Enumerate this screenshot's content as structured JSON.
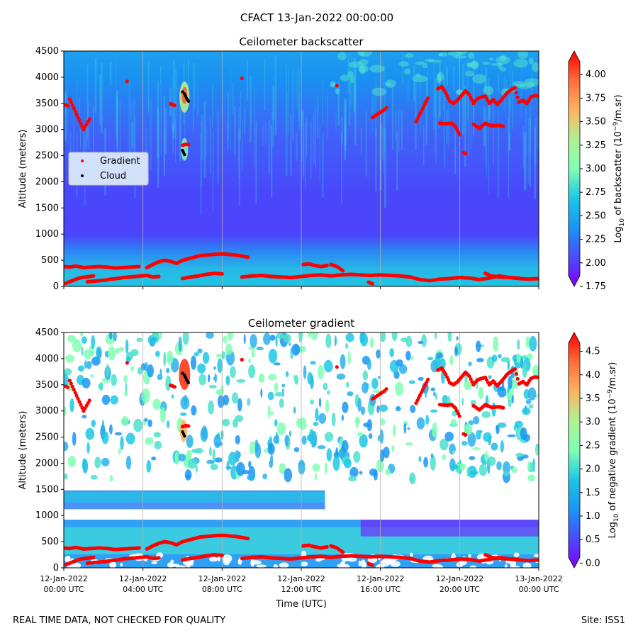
{
  "suptitle": "CFACT 13-Jan-2022 00:00:00",
  "footer": {
    "left": "REAL TIME DATA, NOT CHECKED FOR QUALITY",
    "right": "Site: ISS1"
  },
  "colors": {
    "gradient_marker": "#ff0000",
    "cloud_marker": "#000000",
    "legend_bg": "#dbe8fb",
    "grid": "#b0b0b0"
  },
  "chart_data": [
    {
      "type": "heatmap",
      "title": "Ceilometer backscatter",
      "ylabel": "Altitude (meters)",
      "xlabel": "",
      "x_tick_labels": [
        [
          "12-Jan-2022",
          "00:00 UTC"
        ],
        [
          "12-Jan-2022",
          "04:00 UTC"
        ],
        [
          "12-Jan-2022",
          "08:00 UTC"
        ],
        [
          "12-Jan-2022",
          "12:00 UTC"
        ],
        [
          "12-Jan-2022",
          "16:00 UTC"
        ],
        [
          "12-Jan-2022",
          "20:00 UTC"
        ],
        [
          "13-Jan-2022",
          "00:00 UTC"
        ]
      ],
      "xlim_hours": [
        0,
        24
      ],
      "ylim": [
        0,
        4500
      ],
      "yticks": [
        0,
        500,
        1000,
        1500,
        2000,
        2500,
        3000,
        3500,
        4000,
        4500
      ],
      "grid": "vertical",
      "colormap": "rainbow",
      "colorbar": {
        "label": "Log10 of backscatter (10^-9/m.sr)",
        "label_main": "Log",
        "label_sub": "10",
        "label_rest": " of backscatter (10",
        "label_sup": "−9",
        "label_end": "/m.sr)",
        "range": [
          1.75,
          4.25
        ],
        "ticks": [
          "1.75",
          "2.00",
          "2.25",
          "2.50",
          "2.75",
          "3.00",
          "3.25",
          "3.50",
          "3.75",
          "4.00"
        ]
      },
      "legend": {
        "placement": "center-left",
        "entries": [
          {
            "name": "Gradient",
            "color": "#ff0000"
          },
          {
            "name": "Cloud",
            "color": "#000000"
          }
        ]
      },
      "series": [
        {
          "name": "Gradient",
          "layers": [
            {
              "x": [
                0,
                0.3,
                0.6,
                1,
                1.4,
                1.8,
                2.2,
                2.6,
                3,
                3.4,
                3.8
              ],
              "y": [
                380,
                370,
                390,
                360,
                370,
                380,
                370,
                350,
                360,
                370,
                380
              ]
            },
            {
              "x": [
                0.1,
                0.3,
                0.5,
                0.7,
                0.9,
                1.1,
                1.3,
                1.5
              ],
              "y": [
                60,
                90,
                120,
                150,
                170,
                180,
                190,
                200
              ]
            },
            {
              "x": [
                1.2,
                1.5,
                1.8,
                2.1,
                2.4,
                2.7,
                3.0,
                3.3,
                3.6,
                3.9,
                4.2,
                4.5,
                4.8
              ],
              "y": [
                90,
                100,
                110,
                120,
                140,
                150,
                170,
                180,
                190,
                200,
                210,
                180,
                190
              ]
            },
            {
              "x": [
                4.2,
                4.5,
                4.8,
                5.1,
                5.4,
                5.7,
                6.0,
                6.3,
                6.6,
                6.9,
                7.2,
                7.5,
                7.8,
                8.1,
                8.4,
                8.7,
                9.0,
                9.3
              ],
              "y": [
                360,
                420,
                470,
                500,
                480,
                440,
                500,
                530,
                560,
                590,
                600,
                610,
                620,
                620,
                610,
                600,
                580,
                560
              ]
            },
            {
              "x": [
                6.0,
                6.4,
                6.8,
                7.2,
                7.6,
                8.0
              ],
              "y": [
                150,
                180,
                200,
                230,
                250,
                240
              ]
            },
            {
              "x": [
                9.0,
                9.5,
                10.0,
                10.5,
                11.0,
                11.5,
                12.0,
                12.5,
                13.0,
                13.5,
                14.0,
                14.5,
                15.0,
                15.5,
                16.0,
                16.5,
                17.0,
                17.5,
                18.0,
                18.5,
                19.0,
                19.5,
                20.0,
                20.5,
                21.0,
                21.5,
                22.0,
                22.5,
                23.0,
                23.5,
                24.0
              ],
              "y": [
                180,
                200,
                210,
                190,
                180,
                170,
                190,
                210,
                220,
                200,
                220,
                230,
                220,
                210,
                220,
                210,
                200,
                180,
                130,
                110,
                140,
                150,
                170,
                160,
                130,
                160,
                200,
                170,
                150,
                140,
                150
              ]
            },
            {
              "x": [
                12.1,
                12.4,
                12.7,
                13.0,
                13.3
              ],
              "y": [
                420,
                430,
                400,
                380,
                400
              ]
            },
            {
              "x": [
                13.5,
                13.8,
                14.1
              ],
              "y": [
                420,
                380,
                300
              ]
            },
            {
              "x": [
                15.4,
                15.6
              ],
              "y": [
                80,
                50
              ]
            },
            {
              "x": [
                21.3,
                21.6,
                22.0,
                22.5,
                23.0
              ],
              "y": [
                250,
                200,
                180,
                170,
                160
              ]
            },
            {
              "x": [
                0.1,
                0.2,
                0.3,
                1.0,
                1.3,
                3.2
              ],
              "y": [
                3470,
                3450,
                3580,
                3000,
                3200,
                3920
              ]
            },
            {
              "x": [
                5.4,
                5.6
              ],
              "y": [
                3490,
                3460
              ]
            },
            {
              "x": [
                9.0,
                13.8,
                15.6,
                16.2,
                16.3,
                17.8,
                18.2,
                18.4
              ],
              "y": [
                3980,
                3840,
                3230,
                3380,
                3420,
                3150,
                3450,
                3600
              ]
            },
            {
              "x": [
                18.9,
                19.1,
                19.3,
                19.5,
                19.7,
                19.9,
                20.3,
                20.5,
                20.7,
                20.9,
                21.1,
                21.3,
                21.5,
                21.7,
                21.9,
                22.1,
                22.4,
                22.6,
                22.8,
                23.0,
                23.2,
                23.4,
                23.6,
                23.8,
                24.0
              ],
              "y": [
                3780,
                3820,
                3700,
                3540,
                3500,
                3560,
                3740,
                3660,
                3500,
                3590,
                3620,
                3640,
                3500,
                3570,
                3480,
                3560,
                3700,
                3760,
                3800,
                3520,
                3560,
                3500,
                3620,
                3650,
                3640
              ]
            },
            {
              "x": [
                19.0,
                19.3,
                19.6,
                19.8,
                20.0
              ],
              "y": [
                3120,
                3110,
                3120,
                3050,
                2900
              ]
            },
            {
              "x": [
                20.2,
                20.3
              ],
              "y": [
                2560,
                2540
              ]
            },
            {
              "x": [
                20.7,
                21.0,
                21.3,
                21.6,
                22.0,
                22.2
              ],
              "y": [
                3100,
                3020,
                3120,
                3070,
                3080,
                3060
              ]
            },
            {
              "x": [
                6.0,
                6.2,
                6.3
              ],
              "y": [
                2700,
                2720,
                2710
              ]
            }
          ]
        },
        {
          "name": "Cloud",
          "layers": [
            {
              "x": [
                6.0,
                6.1,
                6.15,
                6.2,
                6.25,
                6.3
              ],
              "y": [
                3720,
                3680,
                3640,
                3600,
                3570,
                3540
              ]
            },
            {
              "x": [
                6.0,
                6.05,
                6.1
              ],
              "y": [
                2600,
                2560,
                2520
              ]
            }
          ]
        }
      ]
    },
    {
      "type": "heatmap",
      "title": "Ceilometer gradient",
      "ylabel": "Altitude (meters)",
      "xlabel": "Time (UTC)",
      "x_tick_labels": [
        [
          "12-Jan-2022",
          "00:00 UTC"
        ],
        [
          "12-Jan-2022",
          "04:00 UTC"
        ],
        [
          "12-Jan-2022",
          "08:00 UTC"
        ],
        [
          "12-Jan-2022",
          "12:00 UTC"
        ],
        [
          "12-Jan-2022",
          "16:00 UTC"
        ],
        [
          "12-Jan-2022",
          "20:00 UTC"
        ],
        [
          "13-Jan-2022",
          "00:00 UTC"
        ]
      ],
      "xlim_hours": [
        0,
        24
      ],
      "ylim": [
        0,
        4500
      ],
      "yticks": [
        0,
        500,
        1000,
        1500,
        2000,
        2500,
        3000,
        3500,
        4000,
        4500
      ],
      "grid": "vertical",
      "colormap": "rainbow",
      "colorbar": {
        "label": "Log10 of negative gradient (10^-9/m.sr)",
        "label_main": "Log",
        "label_sub": "10",
        "label_rest": " of negative gradient (10",
        "label_sup": "−9",
        "label_end": "/m.sr)",
        "range": [
          -0.1,
          4.9
        ],
        "ticks": [
          "0.0",
          "0.5",
          "1.0",
          "1.5",
          "2.0",
          "2.5",
          "3.0",
          "3.5",
          "4.0",
          "4.5"
        ]
      },
      "series": [
        {
          "name": "Gradient",
          "layers": "same as backscatter panel"
        },
        {
          "name": "Cloud",
          "layers": "same as backscatter panel"
        }
      ]
    }
  ]
}
